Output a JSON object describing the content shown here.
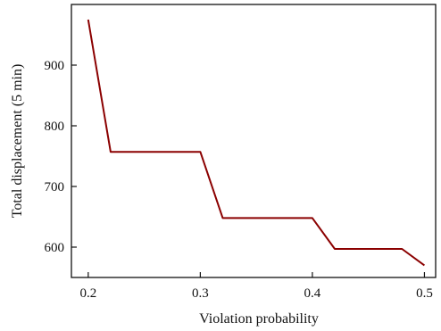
{
  "chart_data": {
    "type": "line",
    "title": "",
    "xlabel": "Violation probability",
    "ylabel": "Total displacement (5 min)",
    "xlim": [
      0.185,
      0.51
    ],
    "ylim": [
      550,
      1000
    ],
    "xticks": [
      0.2,
      0.3,
      0.4,
      0.5
    ],
    "yticks": [
      600,
      700,
      800,
      900
    ],
    "xtick_labels": [
      "0.2",
      "0.3",
      "0.4",
      "0.5"
    ],
    "ytick_labels": [
      "600",
      "700",
      "800",
      "900"
    ],
    "grid": false,
    "legend": "none",
    "series": [
      {
        "color": "#8b0000",
        "x": [
          0.2,
          0.22,
          0.3,
          0.32,
          0.4,
          0.42,
          0.48,
          0.5
        ],
        "y": [
          975,
          757,
          757,
          648,
          648,
          597,
          597,
          570
        ]
      }
    ]
  }
}
